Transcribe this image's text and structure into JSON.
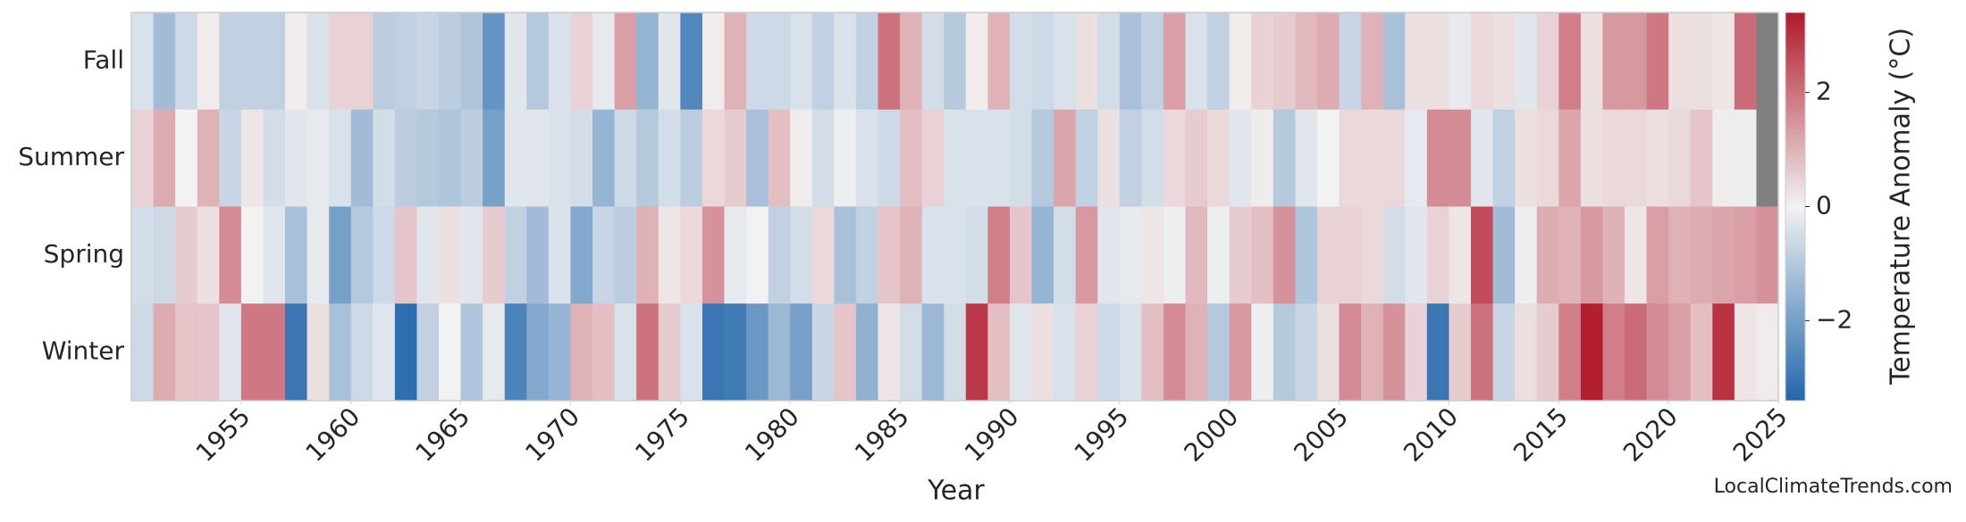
{
  "chart_data": {
    "type": "heatmap",
    "xlabel": "Year",
    "colorbar_label": "Temperature Anomaly (°C)",
    "footer": "LocalClimateTrends.com",
    "x": [
      1950,
      1951,
      1952,
      1953,
      1954,
      1955,
      1956,
      1957,
      1958,
      1959,
      1960,
      1961,
      1962,
      1963,
      1964,
      1965,
      1966,
      1967,
      1968,
      1969,
      1970,
      1971,
      1972,
      1973,
      1974,
      1975,
      1976,
      1977,
      1978,
      1979,
      1980,
      1981,
      1982,
      1983,
      1984,
      1985,
      1986,
      1987,
      1988,
      1989,
      1990,
      1991,
      1992,
      1993,
      1994,
      1995,
      1996,
      1997,
      1998,
      1999,
      2000,
      2001,
      2002,
      2003,
      2004,
      2005,
      2006,
      2007,
      2008,
      2009,
      2010,
      2011,
      2012,
      2013,
      2014,
      2015,
      2016,
      2017,
      2018,
      2019,
      2020,
      2021,
      2022,
      2023,
      2024
    ],
    "xlim": [
      1950,
      2025
    ],
    "xticks": [
      1955,
      1960,
      1965,
      1970,
      1975,
      1980,
      1985,
      1990,
      1995,
      2000,
      2005,
      2010,
      2015,
      2020,
      2025
    ],
    "series": [
      {
        "name": "Fall",
        "values": [
          -0.4,
          -1.3,
          -0.6,
          0.1,
          -0.8,
          -0.8,
          -0.8,
          0.1,
          -0.4,
          0.5,
          0.5,
          -0.9,
          -0.8,
          -0.7,
          -0.9,
          -1.1,
          -2.3,
          -0.3,
          -1.0,
          -0.4,
          0.5,
          -0.2,
          1.3,
          -1.5,
          -0.3,
          -2.6,
          0.1,
          1.0,
          -0.6,
          -0.6,
          -0.4,
          -0.8,
          -0.4,
          -0.8,
          2.0,
          1.0,
          -0.5,
          -1.0,
          0.1,
          1.0,
          -0.5,
          -0.6,
          -0.4,
          0.3,
          -0.5,
          -1.2,
          -0.8,
          1.3,
          -0.4,
          -0.8,
          0.1,
          0.5,
          0.6,
          0.9,
          1.1,
          -0.7,
          1.0,
          -1.2,
          0.3,
          0.3,
          -0.2,
          0.4,
          0.3,
          -0.3,
          0.5,
          1.8,
          0.3,
          1.4,
          1.4,
          1.9,
          0.3,
          0.3,
          0.2,
          2.1,
          null
        ]
      },
      {
        "name": "Summer",
        "values": [
          0.5,
          1.1,
          0.0,
          1.0,
          -0.7,
          0.2,
          -0.5,
          -0.3,
          -0.2,
          -0.4,
          -1.3,
          -0.5,
          -0.9,
          -1.0,
          -1.1,
          -0.9,
          -2.0,
          -0.3,
          -0.3,
          -0.4,
          -0.5,
          -1.5,
          -0.6,
          -1.0,
          -0.5,
          -0.9,
          0.4,
          0.6,
          -1.2,
          0.8,
          0.1,
          -0.5,
          -0.1,
          -0.4,
          -0.6,
          0.8,
          0.5,
          -0.4,
          -0.4,
          -0.4,
          -0.5,
          -1.0,
          1.2,
          -0.8,
          0.3,
          -0.8,
          -0.5,
          0.4,
          0.6,
          0.4,
          -0.3,
          0.1,
          -1.0,
          -0.3,
          0.0,
          0.4,
          0.4,
          0.4,
          -0.2,
          1.6,
          1.6,
          -0.3,
          -0.8,
          0.3,
          0.4,
          1.2,
          0.3,
          0.4,
          0.4,
          0.3,
          0.4,
          0.7,
          0.1,
          -0.1,
          null
        ]
      },
      {
        "name": "Spring",
        "values": [
          -0.5,
          -0.6,
          0.6,
          0.3,
          1.6,
          0.0,
          -0.3,
          -1.2,
          -0.2,
          -2.0,
          -1.0,
          -0.6,
          0.7,
          -0.3,
          0.3,
          -0.3,
          0.6,
          -0.8,
          -1.3,
          -0.4,
          -1.8,
          -0.7,
          -0.9,
          1.0,
          0.2,
          0.4,
          1.5,
          -0.2,
          0.0,
          -0.8,
          -0.5,
          0.4,
          -1.2,
          -0.8,
          0.7,
          1.0,
          -0.4,
          -0.4,
          -0.5,
          1.8,
          0.7,
          -1.5,
          -0.5,
          1.4,
          -0.3,
          -0.2,
          0.2,
          -0.1,
          0.9,
          -0.1,
          0.6,
          0.8,
          1.5,
          -1.1,
          0.5,
          0.5,
          0.4,
          -0.5,
          -0.3,
          0.5,
          0.2,
          2.6,
          -1.3,
          -0.1,
          1.1,
          1.0,
          1.4,
          1.0,
          0.2,
          1.3,
          1.0,
          1.1,
          1.2,
          1.3,
          1.5
        ]
      },
      {
        "name": "Winter",
        "values": [
          -0.6,
          1.1,
          0.7,
          0.7,
          -0.3,
          1.9,
          1.9,
          -3.0,
          0.3,
          -1.2,
          -0.6,
          -0.3,
          -3.2,
          -0.8,
          0.0,
          -1.1,
          -0.2,
          -2.7,
          -1.8,
          -1.5,
          1.0,
          0.8,
          -0.4,
          2.0,
          0.6,
          -0.4,
          -3.0,
          -2.9,
          -2.2,
          -1.4,
          -2.0,
          -0.7,
          0.7,
          -1.6,
          0.2,
          -0.5,
          -1.4,
          -0.5,
          2.9,
          0.8,
          -0.3,
          0.3,
          -0.4,
          0.5,
          -0.6,
          -0.4,
          0.8,
          1.6,
          1.0,
          -1.0,
          1.4,
          -0.1,
          -1.0,
          -0.7,
          0.3,
          1.6,
          1.0,
          1.5,
          0.5,
          -3.0,
          0.6,
          2.0,
          -0.7,
          0.3,
          0.6,
          1.8,
          3.3,
          1.8,
          2.1,
          1.6,
          1.3,
          0.8,
          3.0,
          0.2,
          0.1
        ]
      }
    ],
    "clim": [
      -3.4,
      3.4
    ],
    "cmap": [
      "#2166ac",
      "#f2f2f2",
      "#b2182b"
    ],
    "missing_color": "#808080",
    "cticks": [
      {
        "value": -2,
        "label": "−2"
      },
      0,
      2
    ]
  }
}
